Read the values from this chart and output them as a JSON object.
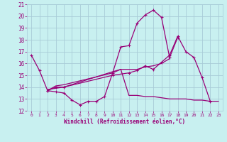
{
  "xlabel": "Windchill (Refroidissement éolien,°C)",
  "bg_color": "#c8f0f0",
  "grid_color": "#a8ccd8",
  "line_color": "#990077",
  "xlim": [
    -0.5,
    23.5
  ],
  "ylim": [
    12,
    21
  ],
  "xticks": [
    0,
    1,
    2,
    3,
    4,
    5,
    6,
    7,
    8,
    9,
    10,
    11,
    12,
    13,
    14,
    15,
    16,
    17,
    18,
    19,
    20,
    21,
    22,
    23
  ],
  "yticks": [
    12,
    13,
    14,
    15,
    16,
    17,
    18,
    19,
    20,
    21
  ],
  "line1_x": [
    0,
    1,
    2,
    3,
    4,
    5,
    6,
    7,
    8,
    9,
    10,
    11,
    12,
    13,
    14,
    15,
    16,
    17,
    18
  ],
  "line1_y": [
    16.7,
    15.4,
    13.7,
    13.6,
    13.5,
    12.9,
    12.5,
    12.8,
    12.8,
    13.2,
    15.2,
    17.4,
    17.5,
    19.4,
    20.1,
    20.5,
    19.9,
    16.5,
    18.2
  ],
  "line2_x": [
    2,
    3,
    4,
    10,
    12,
    13,
    14,
    15,
    16,
    17,
    18,
    19,
    20,
    21,
    22
  ],
  "line2_y": [
    13.7,
    14.0,
    14.0,
    15.0,
    15.2,
    15.4,
    15.8,
    15.5,
    16.1,
    16.7,
    18.3,
    17.0,
    16.5,
    14.8,
    12.8
  ],
  "line3_x": [
    2,
    3,
    4,
    10,
    11,
    12,
    13,
    14,
    15,
    16,
    17
  ],
  "line3_y": [
    13.7,
    14.1,
    14.2,
    15.2,
    15.5,
    15.5,
    15.5,
    15.7,
    15.8,
    16.0,
    16.4
  ],
  "line4_x": [
    2,
    3,
    4,
    10,
    11,
    12,
    13,
    14,
    15,
    16,
    17,
    18,
    19,
    20,
    21,
    22,
    23
  ],
  "line4_y": [
    13.8,
    13.9,
    14.0,
    15.3,
    15.5,
    13.3,
    13.3,
    13.2,
    13.2,
    13.1,
    13.0,
    13.0,
    13.0,
    12.9,
    12.9,
    12.8,
    12.8
  ]
}
